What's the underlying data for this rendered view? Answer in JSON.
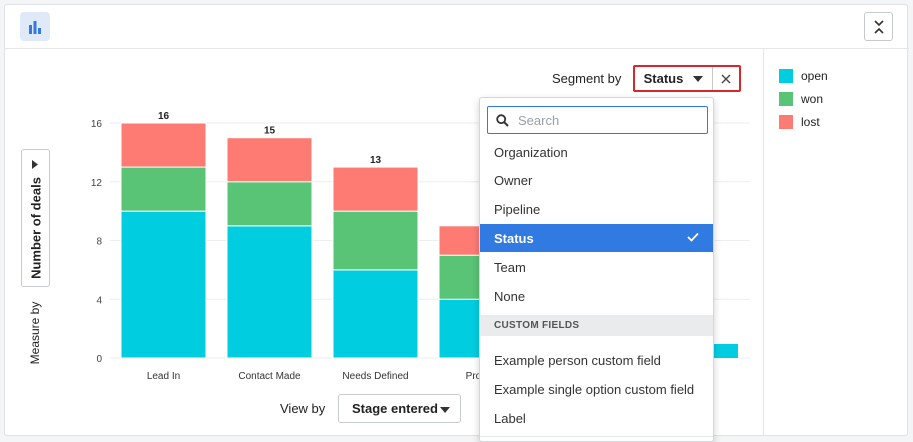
{
  "segment": {
    "label": "Segment by",
    "value": "Status"
  },
  "measure": {
    "label": "Measure by",
    "value": "Number of deals"
  },
  "view_by": {
    "label": "View by",
    "value": "Stage entered"
  },
  "legend": [
    {
      "label": "open",
      "color": "#00cde0"
    },
    {
      "label": "won",
      "color": "#5ac476"
    },
    {
      "label": "lost",
      "color": "#fe7b74"
    }
  ],
  "dropdown": {
    "search_placeholder": "Search",
    "options": [
      "Organization",
      "Owner",
      "Pipeline",
      "Status",
      "Team",
      "None"
    ],
    "selected": "Status",
    "custom_fields_header": "CUSTOM FIELDS",
    "custom_fields": [
      "Example person custom field",
      "Example single option custom field",
      "Label"
    ]
  },
  "chart_data": {
    "type": "bar",
    "stacked": true,
    "categories": [
      "Lead In",
      "Contact Made",
      "Needs Defined",
      "Propos"
    ],
    "series": [
      {
        "name": "open",
        "color": "#00cde0",
        "values": [
          10,
          9,
          6,
          4
        ]
      },
      {
        "name": "won",
        "color": "#5ac476",
        "values": [
          3,
          3,
          4,
          3
        ]
      },
      {
        "name": "lost",
        "color": "#fe7b74",
        "values": [
          3,
          3,
          3,
          2
        ]
      }
    ],
    "totals": [
      "16",
      "15",
      "13",
      ""
    ],
    "yticks": [
      0,
      4,
      8,
      12,
      16
    ],
    "ylim": [
      0,
      16
    ],
    "hidden_bar_open_value": 1
  }
}
